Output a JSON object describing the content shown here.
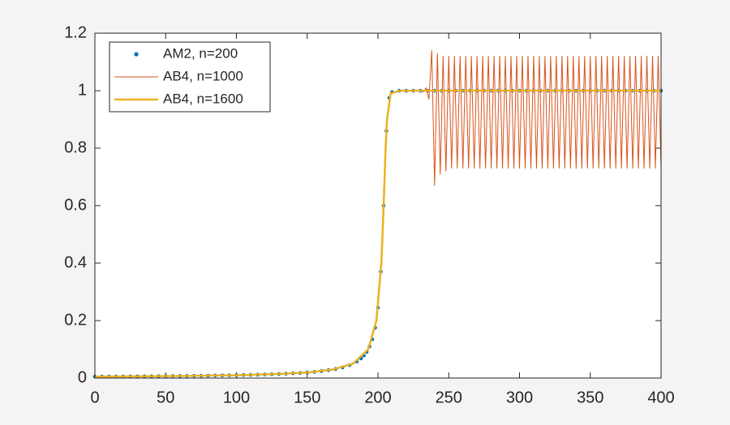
{
  "chart_data": {
    "type": "line",
    "xlim": [
      0,
      400
    ],
    "ylim": [
      0,
      1.2
    ],
    "xticks": [
      0,
      50,
      100,
      150,
      200,
      250,
      300,
      350,
      400
    ],
    "yticks": [
      0,
      0.2,
      0.4,
      0.6,
      0.8,
      1,
      1.2
    ],
    "legend": "upper-left",
    "series": [
      {
        "name": "AM2, n=200",
        "color": "#0072bd",
        "style": "markers",
        "x": [
          0,
          5,
          10,
          15,
          20,
          25,
          30,
          35,
          40,
          45,
          50,
          55,
          60,
          65,
          70,
          75,
          80,
          85,
          90,
          95,
          100,
          105,
          110,
          115,
          120,
          125,
          130,
          135,
          140,
          145,
          150,
          155,
          160,
          165,
          170,
          175,
          180,
          185,
          188,
          190,
          192,
          194,
          196,
          198,
          200,
          202,
          204,
          206,
          208,
          210,
          215,
          220,
          225,
          230,
          235,
          240,
          245,
          250,
          255,
          260,
          265,
          270,
          275,
          280,
          285,
          290,
          295,
          300,
          305,
          310,
          315,
          320,
          325,
          330,
          335,
          340,
          345,
          350,
          355,
          360,
          365,
          370,
          375,
          380,
          385,
          390,
          395,
          400
        ],
        "values": [
          0.005,
          0.0051,
          0.0053,
          0.0054,
          0.0056,
          0.0057,
          0.0059,
          0.0061,
          0.0062,
          0.0064,
          0.0067,
          0.0069,
          0.0071,
          0.0074,
          0.0077,
          0.008,
          0.0083,
          0.0087,
          0.0091,
          0.0095,
          0.0099,
          0.0105,
          0.011,
          0.0117,
          0.0124,
          0.0132,
          0.0141,
          0.0151,
          0.0164,
          0.0178,
          0.0195,
          0.0216,
          0.0241,
          0.0273,
          0.0315,
          0.0371,
          0.045,
          0.0575,
          0.068,
          0.078,
          0.091,
          0.11,
          0.135,
          0.175,
          0.245,
          0.37,
          0.6,
          0.86,
          0.975,
          0.995,
          1,
          1,
          1,
          1,
          1,
          1,
          1,
          1,
          1,
          1,
          1,
          1,
          1,
          1,
          1,
          1,
          1,
          1,
          1,
          1,
          1,
          1,
          1,
          1,
          1,
          1,
          1,
          1,
          1,
          1,
          1,
          1,
          1,
          1,
          1,
          1,
          1,
          1
        ]
      },
      {
        "name": "AB4, n=1000",
        "color": "#d95319",
        "style": "line",
        "width": 1,
        "x": [
          0,
          57.5,
          100.7,
          134.4,
          151.4,
          168.5,
          182.35,
          193.1,
          198.9,
          202.4,
          204,
          205.4,
          206.4,
          208.9,
          215,
          230,
          232,
          234,
          236,
          238,
          240,
          242,
          244,
          246,
          248,
          250,
          252,
          254,
          256,
          258,
          260,
          262,
          264,
          266,
          268,
          270,
          272,
          274,
          276,
          278,
          280,
          282,
          284,
          286,
          288,
          290,
          292,
          294,
          296,
          298,
          300,
          302,
          304,
          306,
          308,
          310,
          312,
          314,
          316,
          318,
          320,
          322,
          324,
          326,
          328,
          330,
          332,
          334,
          336,
          338,
          340,
          342,
          344,
          346,
          348,
          350,
          352,
          354,
          356,
          358,
          360,
          362,
          364,
          366,
          368,
          370,
          372,
          374,
          376,
          378,
          380,
          382,
          384,
          386,
          388,
          390,
          392,
          394,
          396,
          398,
          400
        ],
        "values": [
          0.005,
          0.007,
          0.01,
          0.015,
          0.02,
          0.03,
          0.05,
          0.1,
          0.2,
          0.4,
          0.6,
          0.8,
          0.9,
          0.99,
          1,
          1,
          0.995,
          1.01,
          0.97,
          1.14,
          0.67,
          1.13,
          0.71,
          1.12,
          0.72,
          1.12,
          0.73,
          1.12,
          0.73,
          1.12,
          0.73,
          1.12,
          0.73,
          1.12,
          0.73,
          1.12,
          0.73,
          1.12,
          0.73,
          1.12,
          0.73,
          1.12,
          0.73,
          1.12,
          0.73,
          1.12,
          0.73,
          1.12,
          0.73,
          1.12,
          0.73,
          1.12,
          0.73,
          1.12,
          0.73,
          1.12,
          0.73,
          1.12,
          0.73,
          1.12,
          0.73,
          1.12,
          0.73,
          1.12,
          0.73,
          1.12,
          0.73,
          1.12,
          0.73,
          1.12,
          0.73,
          1.12,
          0.73,
          1.12,
          0.73,
          1.12,
          0.73,
          1.12,
          0.73,
          1.12,
          0.73,
          1.12,
          0.73,
          1.12,
          0.73,
          1.12,
          0.73,
          1.12,
          0.73,
          1.12,
          0.73,
          1.12,
          0.73,
          1.12,
          0.73,
          1.12,
          0.73,
          1.12,
          0.73,
          1.12,
          0.73
        ]
      },
      {
        "name": "AB4, n=1600",
        "color": "#edb120",
        "style": "line",
        "width": 2.5,
        "x": [
          0,
          57.5,
          100.7,
          134.4,
          151.4,
          168.5,
          182.35,
          193.1,
          198.9,
          202.4,
          204,
          205.4,
          206.4,
          208.9,
          215,
          400
        ],
        "values": [
          0.005,
          0.007,
          0.01,
          0.015,
          0.02,
          0.03,
          0.05,
          0.1,
          0.2,
          0.4,
          0.6,
          0.8,
          0.9,
          0.99,
          1,
          1
        ]
      }
    ]
  }
}
